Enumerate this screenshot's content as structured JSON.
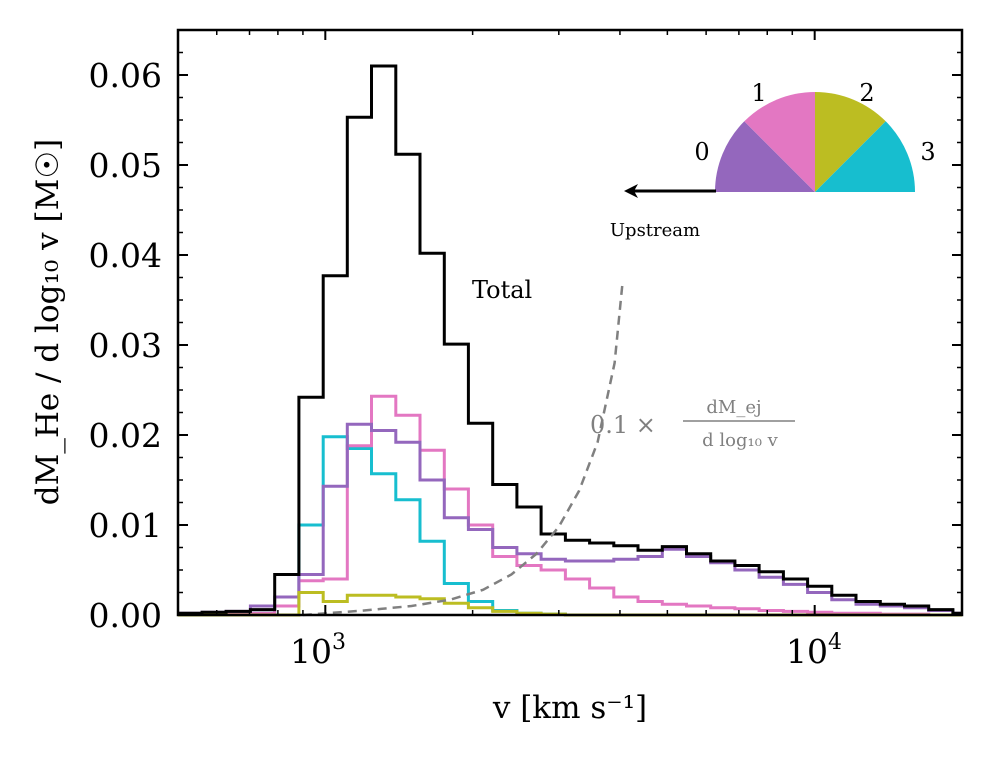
{
  "chart_data": {
    "type": "line",
    "step_histogram": true,
    "xlabel": "v [km s⁻¹]",
    "ylabel": "dM_He / d log₁₀ v [M☉]",
    "xscale": "log",
    "xlim": [
      500,
      20000
    ],
    "ylim": [
      0,
      0.065
    ],
    "yticks": [
      0.0,
      0.01,
      0.02,
      0.03,
      0.04,
      0.05,
      0.06
    ],
    "ytick_labels": [
      "0.00",
      "0.01",
      "0.02",
      "0.03",
      "0.04",
      "0.05",
      "0.06"
    ],
    "xtick_labels": [
      {
        "value": 1000,
        "base": "10",
        "exp": "3"
      },
      {
        "value": 10000,
        "base": "10",
        "exp": "4"
      }
    ],
    "bin_edges": [
      500,
      560,
      627,
      703,
      788,
      883,
      990,
      1109,
      1243,
      1393,
      1561,
      1750,
      1961,
      2198,
      2463,
      2760,
      3094,
      3467,
      3886,
      4355,
      4881,
      5470,
      6131,
      6871,
      7700,
      8630,
      9672,
      10840,
      12148,
      13615,
      15259,
      17101,
      19166,
      20000
    ],
    "series": [
      {
        "name": "Total",
        "color": "#000000",
        "values": [
          0.0002,
          0.0003,
          0.0004,
          0.0006,
          0.0045,
          0.0242,
          0.0377,
          0.0553,
          0.061,
          0.0512,
          0.0402,
          0.0301,
          0.0213,
          0.0145,
          0.012,
          0.009,
          0.0083,
          0.008,
          0.0077,
          0.0072,
          0.0076,
          0.0068,
          0.006,
          0.0055,
          0.0048,
          0.004,
          0.0032,
          0.0022,
          0.0015,
          0.0012,
          0.001,
          0.0006,
          0.0002
        ]
      },
      {
        "color": "#17becf",
        "values": [
          0.0,
          0.0,
          0.0001,
          0.0002,
          0.001,
          0.01,
          0.0198,
          0.0185,
          0.0157,
          0.0128,
          0.0082,
          0.0035,
          0.0015,
          0.0005,
          0.0002,
          0.0001,
          0.0,
          0.0,
          0.0,
          0.0,
          0.0,
          0.0,
          0.0,
          0.0,
          0.0,
          0.0,
          0.0,
          0.0,
          0.0,
          0.0,
          0.0,
          0.0,
          0.0
        ]
      },
      {
        "color": "#e377c2",
        "values": [
          0.0,
          0.0,
          0.0001,
          0.0002,
          0.001,
          0.0038,
          0.004,
          0.0188,
          0.0243,
          0.0222,
          0.0183,
          0.014,
          0.01,
          0.0065,
          0.0055,
          0.005,
          0.004,
          0.003,
          0.002,
          0.0015,
          0.0012,
          0.001,
          0.0008,
          0.0007,
          0.0005,
          0.0004,
          0.0003,
          0.0002,
          0.0002,
          0.0001,
          0.0001,
          0.0,
          0.0
        ]
      },
      {
        "color": "#9467bd",
        "values": [
          0.0002,
          0.0003,
          0.0004,
          0.001,
          0.002,
          0.0045,
          0.0143,
          0.0212,
          0.0205,
          0.0192,
          0.015,
          0.0108,
          0.0095,
          0.0075,
          0.0068,
          0.0062,
          0.006,
          0.006,
          0.0062,
          0.0065,
          0.0073,
          0.0065,
          0.0058,
          0.005,
          0.0042,
          0.0034,
          0.0025,
          0.0017,
          0.0012,
          0.001,
          0.0008,
          0.0005,
          0.0002
        ]
      },
      {
        "color": "#bcbd22",
        "values": [
          0.0,
          0.0,
          0.0,
          0.0,
          0.0,
          0.0025,
          0.0015,
          0.0022,
          0.0022,
          0.002,
          0.0018,
          0.0013,
          0.0008,
          0.0004,
          0.0002,
          0.0001,
          0.0,
          0.0,
          0.0,
          0.0,
          0.0,
          0.0,
          0.0,
          0.0,
          0.0,
          0.0,
          0.0,
          0.0,
          0.0,
          0.0,
          0.0,
          0.0,
          0.0
        ]
      }
    ],
    "dashed_curve": {
      "color": "#808080",
      "label": "0.1 × dM_ej / d log₁₀ v",
      "x": [
        900,
        1200,
        1500,
        1800,
        2100,
        2400,
        2700,
        3000,
        3300,
        3600,
        3900,
        4050
      ],
      "y": [
        0.0,
        0.0005,
        0.001,
        0.0017,
        0.0028,
        0.0045,
        0.0068,
        0.0098,
        0.0138,
        0.0192,
        0.028,
        0.037
      ]
    },
    "annotations": {
      "total_label": "Total",
      "dashed_prefix": "0.1 ×",
      "dashed_num": "dM_ej",
      "dashed_den": "d log₁₀ v"
    },
    "inset": {
      "wedge_labels": [
        "0",
        "1",
        "2",
        "3"
      ],
      "wedge_colors": [
        "#9467bd",
        "#e377c2",
        "#bcbd22",
        "#17becf"
      ],
      "arrow_label": "Upstream"
    }
  }
}
